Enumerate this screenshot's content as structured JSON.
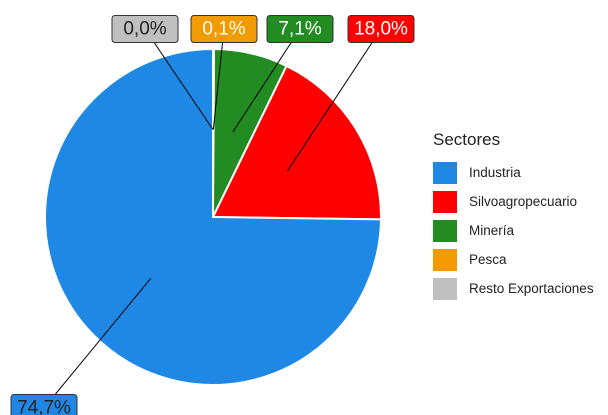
{
  "chart_data": {
    "type": "pie",
    "legend_title": "Sectores",
    "legend_position": "right",
    "slices": [
      {
        "label": "Industria",
        "value": 74.7,
        "value_label": "74,7%",
        "color": "#1f88e5"
      },
      {
        "label": "Silvoagropecuario",
        "value": 18.0,
        "value_label": "18,0%",
        "color": "#ff0000"
      },
      {
        "label": "Minería",
        "value": 7.1,
        "value_label": "7,1%",
        "color": "#228b22"
      },
      {
        "label": "Pesca",
        "value": 0.1,
        "value_label": "0,1%",
        "color": "#f29b00"
      },
      {
        "label": "Resto Exportaciones",
        "value": 0.0,
        "value_label": "0,0%",
        "color": "#c0c0c0"
      }
    ],
    "draw_order": [
      "Resto Exportaciones",
      "Pesca",
      "Minería",
      "Silvoagropecuario",
      "Industria"
    ]
  }
}
